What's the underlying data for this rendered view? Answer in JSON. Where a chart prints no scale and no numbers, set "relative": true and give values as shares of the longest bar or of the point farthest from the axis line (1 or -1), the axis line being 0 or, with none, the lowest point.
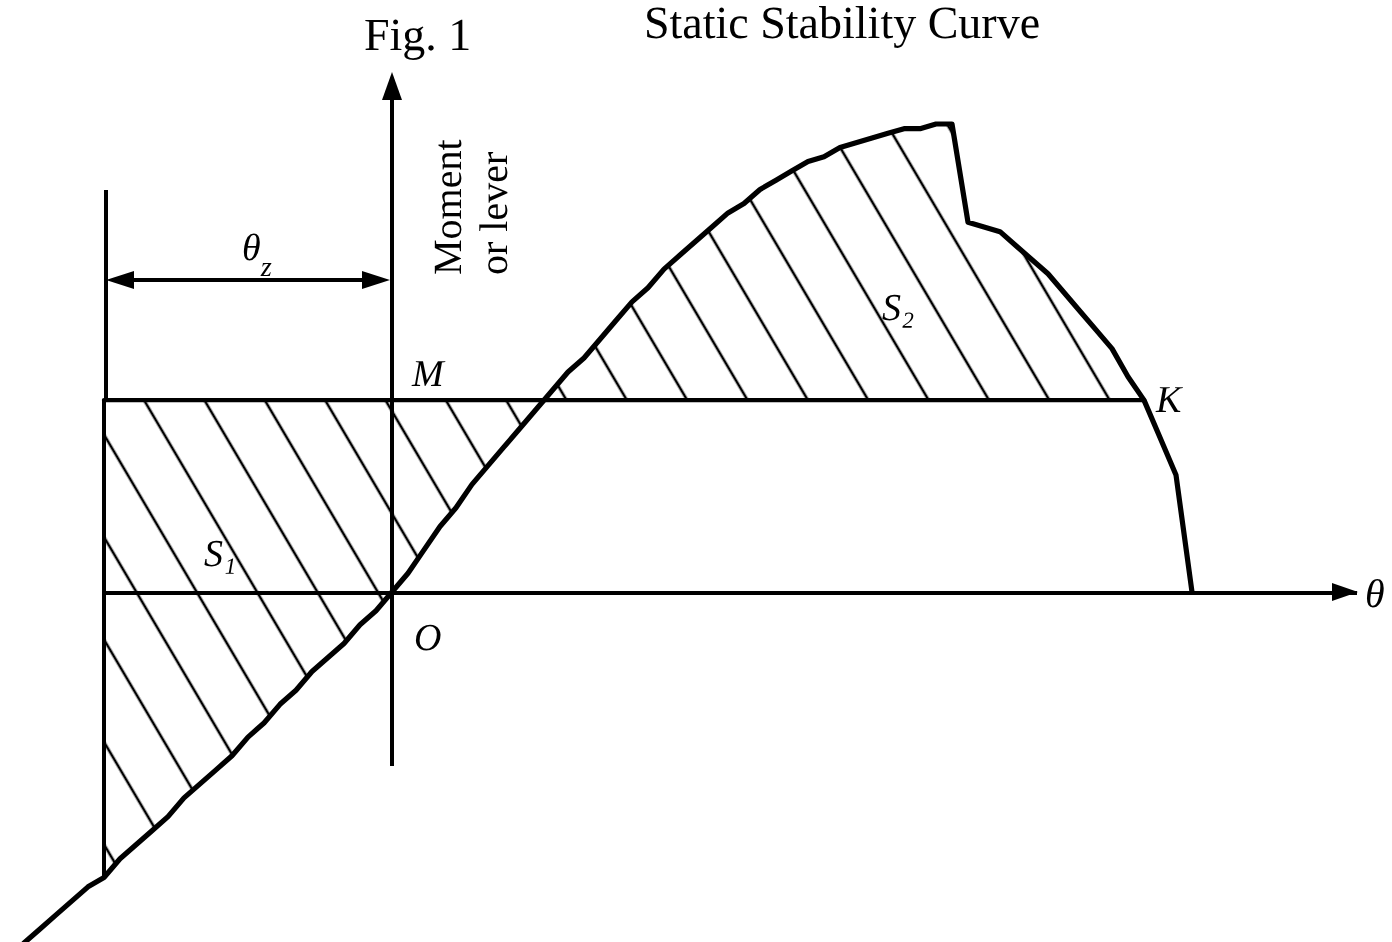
{
  "chart_data": {
    "type": "line",
    "relative": true,
    "title": "Static Stability Curve",
    "xlabel": "θ",
    "ylabel": "Moment or lever",
    "annotations": [
      "Fig. 1",
      "θ$_{z}$",
      "O",
      "K",
      "S₁",
      "S₂"
    ],
    "categories": [
      null,
      null,
      null,
      null,
      null,
      null,
      null,
      null,
      null,
      null,
      null,
      null,
      null,
      null,
      null,
      null,
      null,
      null,
      null,
      null,
      null,
      null,
      null,
      null,
      null,
      null,
      null,
      null,
      null,
      null,
      null,
      null,
      null,
      null,
      null,
      null,
      null,
      null,
      null,
      null,
      null,
      null,
      null,
      null,
      null,
      null,
      null,
      null,
      null,
      null,
      null,
      null,
      null,
      null,
      null,
      null,
      null,
      null,
      null,
      null,
      null,
      null,
      null,
      null,
      null,
      null,
      null,
      null,
      null,
      null,
      null,
      null,
      null,
      null
    ],
    "series": [
      {
        "color": "#000000",
        "values": [
          -0.75,
          -0.72,
          -0.69,
          -0.66,
          -0.63,
          -0.61,
          -0.57,
          -0.54,
          -0.51,
          -0.48,
          -0.44,
          -0.41,
          -0.38,
          -0.35,
          -0.31,
          -0.28,
          -0.24,
          -0.21,
          -0.17,
          -0.14,
          -0.11,
          -0.07,
          -0.04,
          0,
          0.04,
          0.09,
          0.14,
          0.18,
          0.23,
          0.27,
          0.31,
          0.35,
          0.39,
          0.43,
          0.47,
          0.5,
          0.54,
          0.58,
          0.62,
          0.65,
          0.69,
          0.72,
          0.75,
          0.78,
          0.81,
          0.83,
          0.86,
          0.88,
          0.9,
          0.92,
          0.93,
          0.95,
          0.96,
          0.97,
          0.98,
          0.99,
          0.99,
          1,
          1,
          0.79,
          0.78,
          0.77,
          0.74,
          0.71,
          0.68,
          0.64,
          0.6,
          0.56,
          0.52,
          0.46,
          0.41,
          0.33,
          0.25,
          0
        ]
      },
      {
        "name": "M",
        "color": "#000000",
        "values": [
          null,
          null,
          null,
          null,
          null,
          0.41,
          0.41,
          0.41,
          0.41,
          0.41,
          0.41,
          0.41,
          0.41,
          0.41,
          0.41,
          0.41,
          0.41,
          0.41,
          0.41,
          0.41,
          0.41,
          0.41,
          0.41,
          0.41,
          0.41,
          0.41,
          0.41,
          0.41,
          0.41,
          0.41,
          0.41,
          0.41,
          0.41,
          0.41,
          0.41,
          0.41,
          0.41,
          0.41,
          0.41,
          0.41,
          0.41,
          0.41,
          0.41,
          0.41,
          0.41,
          0.41,
          0.41,
          0.41,
          0.41,
          0.41,
          0.41,
          0.41,
          0.41,
          0.41,
          0.41,
          0.41,
          0.41,
          0.41,
          0.41,
          0.41,
          0.41,
          0.41,
          0.41,
          0.41,
          0.41,
          0.41,
          0.41,
          0.41,
          0.41,
          0.41,
          0.41,
          null,
          null,
          null
        ],
        "lower": [
          null,
          null,
          null,
          null,
          null,
          -0.61,
          -0.57,
          -0.54,
          -0.51,
          -0.48,
          -0.44,
          -0.41,
          -0.38,
          -0.35,
          -0.31,
          -0.28,
          -0.24,
          -0.21,
          -0.17,
          -0.14,
          -0.11,
          -0.07,
          -0.04,
          0,
          0.04,
          0.09,
          0.14,
          0.18,
          0.23,
          0.27,
          0.31,
          0.35,
          0.39,
          0.41,
          0.41,
          0.41,
          0.41,
          0.41,
          0.41,
          0.41,
          0.41,
          0.41,
          0.41,
          0.41,
          0.41,
          0.41,
          0.41,
          0.41,
          0.41,
          0.41,
          0.41,
          0.41,
          0.41,
          0.41,
          0.41,
          0.41,
          0.41,
          0.41,
          0.41,
          0.41,
          0.41,
          0.41,
          0.41,
          0.41,
          0.41,
          0.41,
          0.41,
          0.41,
          0.41,
          0.41,
          0.41,
          null,
          null,
          null
        ],
        "upper": [
          null,
          null,
          null,
          null,
          null,
          0.41,
          0.41,
          0.41,
          0.41,
          0.41,
          0.41,
          0.41,
          0.41,
          0.41,
          0.41,
          0.41,
          0.41,
          0.41,
          0.41,
          0.41,
          0.41,
          0.41,
          0.41,
          0.41,
          0.41,
          0.41,
          0.41,
          0.41,
          0.41,
          0.41,
          0.41,
          0.41,
          0.41,
          0.43,
          0.47,
          0.5,
          0.54,
          0.58,
          0.62,
          0.65,
          0.69,
          0.72,
          0.75,
          0.78,
          0.81,
          0.83,
          0.86,
          0.88,
          0.9,
          0.92,
          0.93,
          0.95,
          0.96,
          0.97,
          0.98,
          0.99,
          0.99,
          1,
          1,
          0.79,
          0.78,
          0.77,
          0.74,
          0.71,
          0.68,
          0.64,
          0.6,
          0.56,
          0.52,
          0.46,
          0.41,
          null,
          null,
          null
        ]
      }
    ]
  }
}
